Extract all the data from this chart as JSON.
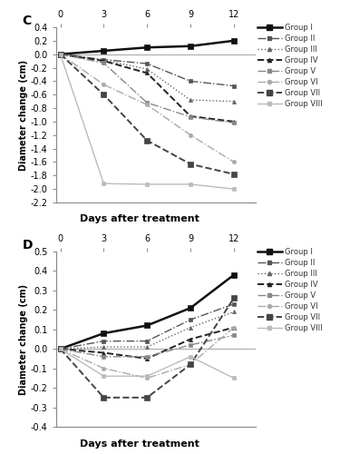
{
  "days": [
    0,
    3,
    6,
    9,
    12
  ],
  "panel_C": {
    "title": "C",
    "ylabel": "Diameter change (cm)",
    "xlabel": "Days after treatment",
    "ylim": [
      -2.2,
      0.4
    ],
    "yticks": [
      -2.2,
      -2.0,
      -1.8,
      -1.6,
      -1.4,
      -1.2,
      -1.0,
      -0.8,
      -0.6,
      -0.4,
      -0.2,
      0.0,
      0.2,
      0.4
    ],
    "groups": {
      "Group I": [
        0.0,
        0.05,
        0.1,
        0.12,
        0.2
      ],
      "Group II": [
        0.0,
        -0.08,
        -0.14,
        -0.4,
        -0.47
      ],
      "Group III": [
        0.0,
        -0.09,
        -0.22,
        -0.68,
        -0.7
      ],
      "Group IV": [
        0.0,
        -0.1,
        -0.28,
        -0.92,
        -1.0
      ],
      "Group V": [
        0.0,
        -0.13,
        -0.72,
        -0.93,
        -1.02
      ],
      "Group VI": [
        0.0,
        -0.45,
        -0.75,
        -1.2,
        -1.6
      ],
      "Group VII": [
        0.0,
        -0.6,
        -1.28,
        -1.63,
        -1.78
      ],
      "Group VIII": [
        0.0,
        -1.92,
        -1.93,
        -1.93,
        -2.0
      ]
    }
  },
  "panel_D": {
    "title": "D",
    "ylabel": "Diameter change (cm)",
    "xlabel": "Days after treatment",
    "ylim": [
      -0.4,
      0.5
    ],
    "yticks": [
      -0.4,
      -0.3,
      -0.2,
      -0.1,
      0.0,
      0.1,
      0.2,
      0.3,
      0.4,
      0.5
    ],
    "groups": {
      "Group I": [
        0.0,
        0.08,
        0.12,
        0.21,
        0.38
      ],
      "Group II": [
        0.0,
        0.04,
        0.04,
        0.15,
        0.23
      ],
      "Group III": [
        0.0,
        0.01,
        0.01,
        0.11,
        0.19
      ],
      "Group IV": [
        0.0,
        -0.02,
        -0.05,
        0.05,
        0.11
      ],
      "Group V": [
        0.0,
        -0.04,
        -0.04,
        0.02,
        0.07
      ],
      "Group VI": [
        0.0,
        -0.1,
        -0.15,
        -0.08,
        0.11
      ],
      "Group VII": [
        0.0,
        -0.25,
        -0.25,
        -0.08,
        0.26
      ],
      "Group VIII": [
        0.0,
        -0.14,
        -0.14,
        -0.04,
        -0.15
      ]
    }
  },
  "line_styles": {
    "Group I": {
      "color": "#111111",
      "lw": 1.8,
      "ls": "-",
      "marker": "s",
      "ms": 4,
      "mfc": "#111111"
    },
    "Group II": {
      "color": "#555555",
      "lw": 1.0,
      "ls": "-.",
      "marker": "s",
      "ms": 3,
      "mfc": "#555555"
    },
    "Group III": {
      "color": "#666666",
      "lw": 1.0,
      "ls": ":",
      "marker": "^",
      "ms": 3,
      "mfc": "#666666"
    },
    "Group IV": {
      "color": "#222222",
      "lw": 1.4,
      "ls": "--",
      "marker": "^",
      "ms": 3,
      "mfc": "#222222"
    },
    "Group V": {
      "color": "#888888",
      "lw": 1.0,
      "ls": "-.",
      "marker": "s",
      "ms": 3,
      "mfc": "#888888"
    },
    "Group VI": {
      "color": "#aaaaaa",
      "lw": 1.0,
      "ls": "-.",
      "marker": "o",
      "ms": 3,
      "mfc": "#aaaaaa"
    },
    "Group VII": {
      "color": "#444444",
      "lw": 1.4,
      "ls": "--",
      "marker": "s",
      "ms": 4,
      "mfc": "#444444"
    },
    "Group VIII": {
      "color": "#bbbbbb",
      "lw": 1.0,
      "ls": "-",
      "marker": "s",
      "ms": 3,
      "mfc": "#bbbbbb"
    }
  },
  "group_order": [
    "Group I",
    "Group II",
    "Group III",
    "Group IV",
    "Group V",
    "Group VI",
    "Group VII",
    "Group VIII"
  ]
}
